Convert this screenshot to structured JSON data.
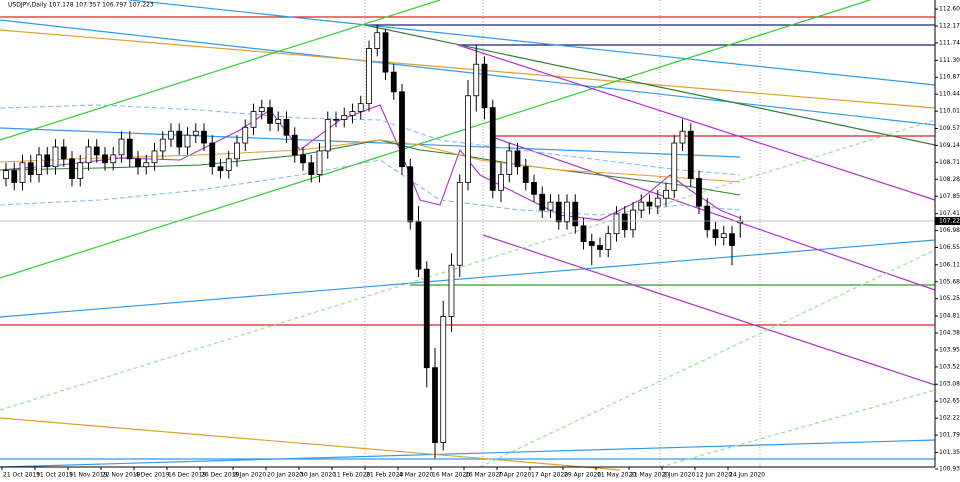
{
  "chart_data": {
    "type": "candlestick",
    "title": "USDJPY,Daily 107.178 107.357 106.797 107.223",
    "x_labels": [
      "21 Oct 2019",
      "31 Oct 2019",
      "11 Nov 2019",
      "22 Nov 2019",
      "4 Dec 2019",
      "16 Dec 2019",
      "26 Dec 2019",
      "8 Jan 2020",
      "20 Jan 2020",
      "30 Jan 2020",
      "11 Feb 2020",
      "21 Feb 2020",
      "4 Mar 2020",
      "16 Mar 2020",
      "26 Mar 2020",
      "7 Apr 2020",
      "17 Apr 2020",
      "29 Apr 2020",
      "11 May 2020",
      "21 May 2020",
      "2 Jun 2020",
      "12 Jun 2020",
      "24 Jun 2020"
    ],
    "candles": [
      [
        108.3,
        108.7,
        108.1,
        108.5
      ],
      [
        108.5,
        108.7,
        108.0,
        108.2
      ],
      [
        108.2,
        108.9,
        108.0,
        108.7
      ],
      [
        108.7,
        108.9,
        108.2,
        108.4
      ],
      [
        108.4,
        109.1,
        108.2,
        108.9
      ],
      [
        108.9,
        109.1,
        108.4,
        108.6
      ],
      [
        108.6,
        109.3,
        108.4,
        109.1
      ],
      [
        109.1,
        109.3,
        108.6,
        108.8
      ],
      [
        108.8,
        109.0,
        108.1,
        108.3
      ],
      [
        108.3,
        108.9,
        108.1,
        108.7
      ],
      [
        108.7,
        109.3,
        108.5,
        109.1
      ],
      [
        109.1,
        109.3,
        108.7,
        108.9
      ],
      [
        108.9,
        109.1,
        108.5,
        108.7
      ],
      [
        108.7,
        109.1,
        108.5,
        108.9
      ],
      [
        108.9,
        109.5,
        108.7,
        109.3
      ],
      [
        109.3,
        109.5,
        108.6,
        108.8
      ],
      [
        108.8,
        109.0,
        108.4,
        108.6
      ],
      [
        108.6,
        108.9,
        108.4,
        108.7
      ],
      [
        108.7,
        109.2,
        108.5,
        109.0
      ],
      [
        109.0,
        109.5,
        108.8,
        109.3
      ],
      [
        109.3,
        109.7,
        109.1,
        109.5
      ],
      [
        109.5,
        109.7,
        108.9,
        109.1
      ],
      [
        109.1,
        109.6,
        108.9,
        109.4
      ],
      [
        109.4,
        109.7,
        109.2,
        109.5
      ],
      [
        109.5,
        109.7,
        109.0,
        109.2
      ],
      [
        109.2,
        109.4,
        108.4,
        108.6
      ],
      [
        108.6,
        108.8,
        108.3,
        108.5
      ],
      [
        108.5,
        109.0,
        108.3,
        108.8
      ],
      [
        108.8,
        109.4,
        108.6,
        109.2
      ],
      [
        109.2,
        109.8,
        109.0,
        109.6
      ],
      [
        109.6,
        110.2,
        109.4,
        110.0
      ],
      [
        110.0,
        110.3,
        109.8,
        110.1
      ],
      [
        110.1,
        110.3,
        109.5,
        109.7
      ],
      [
        109.7,
        110.0,
        109.5,
        109.8
      ],
      [
        109.8,
        110.0,
        109.2,
        109.4
      ],
      [
        109.4,
        109.6,
        108.7,
        108.9
      ],
      [
        108.9,
        109.1,
        108.5,
        108.7
      ],
      [
        108.7,
        108.9,
        108.2,
        108.4
      ],
      [
        108.4,
        109.2,
        108.2,
        109.0
      ],
      [
        109.0,
        110.0,
        108.8,
        109.8
      ],
      [
        109.8,
        110.0,
        109.6,
        109.8
      ],
      [
        109.8,
        110.1,
        109.6,
        109.9
      ],
      [
        109.9,
        110.2,
        109.7,
        110.0
      ],
      [
        110.0,
        110.4,
        109.8,
        110.2
      ],
      [
        110.2,
        111.8,
        110.0,
        111.6
      ],
      [
        111.6,
        112.2,
        111.4,
        112.0
      ],
      [
        112.0,
        112.1,
        110.8,
        111.0
      ],
      [
        111.0,
        111.2,
        110.3,
        110.5
      ],
      [
        110.5,
        110.7,
        108.4,
        108.6
      ],
      [
        108.6,
        108.8,
        107.0,
        107.2
      ],
      [
        107.2,
        107.6,
        105.8,
        106.0
      ],
      [
        106.0,
        106.2,
        103.0,
        103.5
      ],
      [
        103.5,
        104.0,
        101.2,
        101.6
      ],
      [
        101.6,
        105.2,
        101.4,
        104.8
      ],
      [
        104.8,
        106.4,
        104.4,
        106.1
      ],
      [
        106.1,
        108.4,
        105.8,
        108.2
      ],
      [
        108.2,
        110.8,
        108.0,
        110.4
      ],
      [
        110.4,
        111.7,
        110.0,
        111.2
      ],
      [
        111.2,
        111.4,
        109.8,
        110.1
      ],
      [
        110.1,
        110.3,
        107.8,
        108.0
      ],
      [
        108.0,
        108.7,
        107.7,
        108.4
      ],
      [
        108.4,
        109.2,
        108.2,
        109.0
      ],
      [
        109.0,
        109.2,
        108.4,
        108.6
      ],
      [
        108.6,
        108.8,
        108.0,
        108.2
      ],
      [
        108.2,
        108.4,
        107.7,
        107.9
      ],
      [
        107.9,
        108.1,
        107.3,
        107.5
      ],
      [
        107.5,
        107.9,
        107.3,
        107.7
      ],
      [
        107.7,
        107.9,
        107.0,
        107.2
      ],
      [
        107.2,
        107.9,
        107.0,
        107.7
      ],
      [
        107.7,
        107.9,
        106.9,
        107.1
      ],
      [
        107.1,
        107.3,
        106.5,
        106.7
      ],
      [
        106.7,
        106.9,
        106.1,
        106.6
      ],
      [
        106.6,
        106.8,
        106.3,
        106.5
      ],
      [
        106.5,
        107.1,
        106.3,
        106.9
      ],
      [
        106.9,
        107.6,
        106.7,
        107.4
      ],
      [
        107.4,
        107.6,
        106.8,
        107.0
      ],
      [
        107.0,
        107.7,
        106.8,
        107.5
      ],
      [
        107.5,
        107.9,
        107.3,
        107.7
      ],
      [
        107.7,
        107.9,
        107.4,
        107.6
      ],
      [
        107.6,
        108.0,
        107.4,
        107.8
      ],
      [
        107.8,
        108.2,
        107.6,
        108.0
      ],
      [
        108.0,
        109.4,
        107.8,
        109.2
      ],
      [
        109.2,
        109.8,
        109.0,
        109.5
      ],
      [
        109.5,
        109.7,
        108.1,
        108.3
      ],
      [
        108.3,
        108.5,
        107.4,
        107.6
      ],
      [
        107.6,
        107.8,
        106.8,
        107.0
      ],
      [
        107.0,
        107.2,
        106.6,
        106.8
      ],
      [
        106.8,
        107.1,
        106.6,
        106.9
      ],
      [
        106.9,
        107.1,
        106.1,
        106.6
      ],
      [
        107.178,
        107.357,
        106.797,
        107.223
      ]
    ],
    "ylim": [
      100.98,
      112.83
    ],
    "yticks": [
      {
        "value": 112.6,
        "label": "112.600"
      },
      {
        "value": 112.17,
        "label": "112.170"
      },
      {
        "value": 111.74,
        "label": "111.740"
      },
      {
        "value": 111.3,
        "label": "111.300"
      },
      {
        "value": 110.87,
        "label": "110.870"
      },
      {
        "value": 110.44,
        "label": "110.440"
      },
      {
        "value": 110.01,
        "label": "110.010"
      },
      {
        "value": 109.57,
        "label": "109.570"
      },
      {
        "value": 109.14,
        "label": "109.140"
      },
      {
        "value": 108.71,
        "label": "108.710"
      },
      {
        "value": 108.28,
        "label": "108.280"
      },
      {
        "value": 107.85,
        "label": "107.850"
      },
      {
        "value": 107.41,
        "label": "107.410"
      },
      {
        "value": 106.98,
        "label": "106.980"
      },
      {
        "value": 106.55,
        "label": "106.550"
      },
      {
        "value": 106.11,
        "label": "106.110"
      },
      {
        "value": 105.68,
        "label": "105.680"
      },
      {
        "value": 105.25,
        "label": "105.250"
      },
      {
        "value": 104.81,
        "label": "104.810"
      },
      {
        "value": 104.38,
        "label": "104.380"
      },
      {
        "value": 103.95,
        "label": "103.950"
      },
      {
        "value": 103.52,
        "label": "103.520"
      },
      {
        "value": 103.08,
        "label": "103.080"
      },
      {
        "value": 102.65,
        "label": "102.650"
      },
      {
        "value": 102.22,
        "label": "102.220"
      },
      {
        "value": 101.79,
        "label": "101.790"
      },
      {
        "value": 101.35,
        "label": "101.350"
      },
      {
        "value": 100.93,
        "label": "100.930"
      }
    ],
    "up_color": "#ffffff",
    "down_color": "#000000",
    "outline_color": "#000000"
  }
}
